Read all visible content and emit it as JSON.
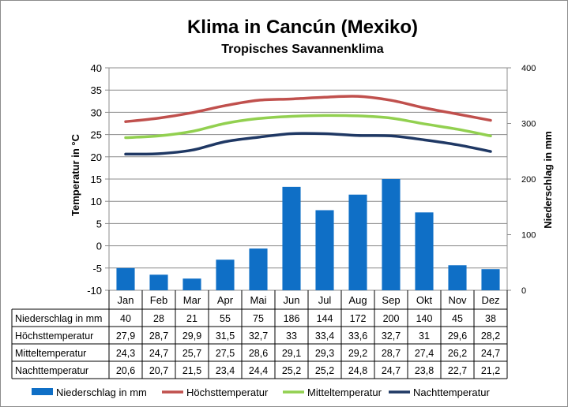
{
  "chart_data": {
    "type": "bar+line",
    "title": "Klima in Cancún (Mexiko)",
    "subtitle": "Tropisches Savannenklima",
    "ylabel": "Temperatur in °C",
    "y2label": "Niederschlag in mm",
    "ylim": [
      -10,
      40
    ],
    "y2lim": [
      0,
      400
    ],
    "yticks": [
      "40",
      "35",
      "30",
      "25",
      "20",
      "15",
      "10",
      "5",
      "0",
      "-5",
      "-10"
    ],
    "y2ticks": [
      "400",
      "300",
      "200",
      "100",
      "0"
    ],
    "categories": [
      "Jan",
      "Feb",
      "Mar",
      "Apr",
      "Mai",
      "Jun",
      "Jul",
      "Aug",
      "Sep",
      "Okt",
      "Nov",
      "Dez"
    ],
    "bar_series": {
      "name": "Niederschlag in mm",
      "color": "#0f6fc6",
      "values": [
        40,
        28,
        21,
        55,
        75,
        186,
        144,
        172,
        200,
        140,
        45,
        38
      ],
      "labels": [
        "40",
        "28",
        "21",
        "55",
        "75",
        "186",
        "144",
        "172",
        "200",
        "140",
        "45",
        "38"
      ]
    },
    "line_series": [
      {
        "name": "Höchsttemperatur",
        "color": "#c0504d",
        "values": [
          27.9,
          28.7,
          29.9,
          31.5,
          32.7,
          33,
          33.4,
          33.6,
          32.7,
          31,
          29.6,
          28.2
        ],
        "labels": [
          "27,9",
          "28,7",
          "29,9",
          "31,5",
          "32,7",
          "33",
          "33,4",
          "33,6",
          "32,7",
          "31",
          "29,6",
          "28,2"
        ]
      },
      {
        "name": "Mitteltemperatur",
        "color": "#92d050",
        "values": [
          24.3,
          24.7,
          25.7,
          27.5,
          28.6,
          29.1,
          29.3,
          29.2,
          28.7,
          27.4,
          26.2,
          24.7
        ],
        "labels": [
          "24,3",
          "24,7",
          "25,7",
          "27,5",
          "28,6",
          "29,1",
          "29,3",
          "29,2",
          "28,7",
          "27,4",
          "26,2",
          "24,7"
        ]
      },
      {
        "name": "Nachttemperatur",
        "color": "#1f3864",
        "values": [
          20.6,
          20.7,
          21.5,
          23.4,
          24.4,
          25.2,
          25.2,
          24.8,
          24.7,
          23.8,
          22.7,
          21.2
        ],
        "labels": [
          "20,6",
          "20,7",
          "21,5",
          "23,4",
          "24,4",
          "25,2",
          "25,2",
          "24,8",
          "24,7",
          "23,8",
          "22,7",
          "21,2"
        ]
      }
    ],
    "grid": true,
    "legend": "bottom"
  }
}
